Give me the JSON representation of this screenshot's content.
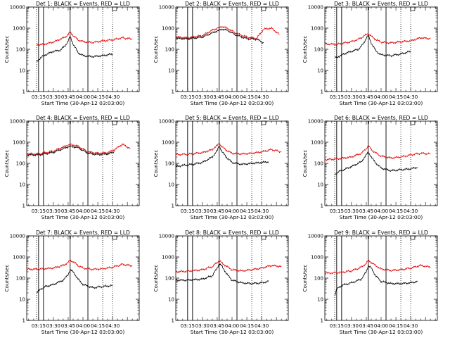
{
  "page": {
    "ylabel": "Counts/sec",
    "xlabel": "Start Time (30-Apr-12 03:03:00)",
    "x_ticks": [
      "03:15",
      "03:30",
      "03:45",
      "04:00",
      "04:15",
      "04:30"
    ],
    "y_ticks": [
      "1",
      "10",
      "100",
      "1000",
      "10000"
    ],
    "colors": {
      "black_series": "#000000",
      "red_series": "#e00000",
      "axes": "#000000"
    }
  },
  "chart_data": [
    {
      "type": "line",
      "title": "Det 1: BLACK = Events, RED = LLD",
      "x_range": [
        "03:03",
        "04:57"
      ],
      "ylim": [
        1,
        10000
      ],
      "y_scale": "log",
      "vlines_solid": [
        "03:15",
        "03:20",
        "03:47",
        "04:05"
      ],
      "vlines_dotted": [
        "03:13",
        "04:20",
        "04:30"
      ],
      "series": [
        {
          "name": "BLACK",
          "x": [
            "03:13",
            "03:17",
            "03:22",
            "03:30",
            "03:37",
            "03:42",
            "03:45",
            "03:47",
            "03:50",
            "03:55",
            "04:00",
            "04:10",
            "04:20",
            "04:30"
          ],
          "y": [
            25,
            40,
            55,
            80,
            90,
            150,
            250,
            400,
            180,
            70,
            50,
            45,
            50,
            60
          ]
        },
        {
          "name": "RED",
          "x": [
            "03:13",
            "03:20",
            "03:30",
            "03:37",
            "03:42",
            "03:45",
            "03:47",
            "03:50",
            "03:55",
            "04:00",
            "04:10",
            "04:20",
            "04:30",
            "04:40",
            "04:50"
          ],
          "y": [
            170,
            170,
            220,
            300,
            380,
            500,
            650,
            450,
            280,
            230,
            210,
            250,
            280,
            350,
            300
          ]
        }
      ]
    },
    {
      "type": "line",
      "title": "Det 2: BLACK = Events, RED = LLD",
      "x_range": [
        "03:03",
        "04:57"
      ],
      "ylim": [
        1,
        10000
      ],
      "y_scale": "log",
      "vlines_solid": [
        "03:15",
        "03:20",
        "03:47",
        "04:05"
      ],
      "vlines_dotted": [
        "04:20",
        "04:30"
      ],
      "series": [
        {
          "name": "BLACK",
          "x": [
            "03:03",
            "03:15",
            "03:30",
            "03:40",
            "03:50",
            "03:55",
            "04:05",
            "04:15",
            "04:25",
            "04:32"
          ],
          "y": [
            330,
            310,
            380,
            600,
            900,
            800,
            450,
            320,
            300,
            200
          ]
        },
        {
          "name": "RED",
          "x": [
            "03:03",
            "03:15",
            "03:30",
            "03:40",
            "03:50",
            "03:55",
            "04:05",
            "04:15",
            "04:25",
            "04:32",
            "04:40",
            "04:48"
          ],
          "y": [
            380,
            350,
            450,
            800,
            1200,
            1000,
            550,
            380,
            330,
            900,
            1000,
            500
          ]
        }
      ]
    },
    {
      "type": "line",
      "title": "Det 3: BLACK = Events, RED = LLD",
      "x_range": [
        "03:03",
        "04:57"
      ],
      "ylim": [
        1,
        10000
      ],
      "y_scale": "log",
      "vlines_solid": [
        "03:15",
        "03:20",
        "03:47",
        "04:05"
      ],
      "vlines_dotted": [
        "03:13",
        "04:20",
        "04:30"
      ],
      "series": [
        {
          "name": "BLACK",
          "x": [
            "03:13",
            "03:17",
            "03:22",
            "03:30",
            "03:37",
            "03:42",
            "03:45",
            "03:47",
            "03:50",
            "03:55",
            "04:00",
            "04:10",
            "04:20",
            "04:30"
          ],
          "y": [
            40,
            45,
            60,
            80,
            100,
            180,
            350,
            450,
            200,
            80,
            55,
            50,
            60,
            80
          ]
        },
        {
          "name": "RED",
          "x": [
            "03:03",
            "03:15",
            "03:30",
            "03:37",
            "03:42",
            "03:45",
            "03:47",
            "03:50",
            "03:55",
            "04:00",
            "04:10",
            "04:20",
            "04:30",
            "04:40",
            "04:50"
          ],
          "y": [
            180,
            170,
            230,
            300,
            400,
            500,
            550,
            420,
            280,
            220,
            200,
            230,
            250,
            350,
            320
          ]
        }
      ]
    },
    {
      "type": "line",
      "title": "Det 4: BLACK = Events, RED = LLD",
      "x_range": [
        "03:03",
        "04:57"
      ],
      "ylim": [
        1,
        10000
      ],
      "y_scale": "log",
      "vlines_solid": [
        "03:15",
        "03:20",
        "03:47",
        "04:05"
      ],
      "vlines_dotted": [
        "04:20",
        "04:30"
      ],
      "series": [
        {
          "name": "BLACK",
          "x": [
            "03:03",
            "03:15",
            "03:30",
            "03:40",
            "03:47",
            "03:55",
            "04:05",
            "04:15",
            "04:25",
            "04:32"
          ],
          "y": [
            250,
            250,
            330,
            500,
            650,
            550,
            300,
            260,
            280,
            350
          ]
        },
        {
          "name": "RED",
          "x": [
            "03:03",
            "03:15",
            "03:30",
            "03:40",
            "03:47",
            "03:55",
            "04:05",
            "04:15",
            "04:25",
            "04:32",
            "04:40",
            "04:48"
          ],
          "y": [
            280,
            280,
            380,
            600,
            800,
            650,
            350,
            300,
            320,
            450,
            800,
            500
          ]
        }
      ]
    },
    {
      "type": "line",
      "title": "Det 5: BLACK = Events, RED = LLD",
      "x_range": [
        "03:03",
        "04:57"
      ],
      "ylim": [
        1,
        10000
      ],
      "y_scale": "log",
      "vlines_solid": [
        "03:15",
        "03:20",
        "03:47",
        "04:05"
      ],
      "vlines_dotted": [
        "04:20",
        "04:30"
      ],
      "series": [
        {
          "name": "BLACK",
          "x": [
            "03:03",
            "03:10",
            "03:20",
            "03:30",
            "03:40",
            "03:45",
            "03:47",
            "03:50",
            "03:55",
            "04:00",
            "04:10",
            "04:20",
            "04:30",
            "04:37"
          ],
          "y": [
            70,
            80,
            90,
            110,
            200,
            400,
            700,
            350,
            180,
            110,
            90,
            100,
            110,
            120
          ]
        },
        {
          "name": "RED",
          "x": [
            "03:03",
            "03:15",
            "03:30",
            "03:40",
            "03:45",
            "03:47",
            "03:50",
            "03:55",
            "04:00",
            "04:10",
            "04:20",
            "04:30",
            "04:40",
            "04:50"
          ],
          "y": [
            260,
            270,
            320,
            450,
            700,
            900,
            600,
            400,
            300,
            280,
            300,
            350,
            450,
            350
          ]
        }
      ]
    },
    {
      "type": "line",
      "title": "Det 6: BLACK = Events, RED = LLD",
      "x_range": [
        "03:03",
        "04:57"
      ],
      "ylim": [
        1,
        10000
      ],
      "y_scale": "log",
      "vlines_solid": [
        "03:15",
        "03:20",
        "03:47",
        "04:05"
      ],
      "vlines_dotted": [
        "03:13",
        "04:20",
        "04:30"
      ],
      "series": [
        {
          "name": "BLACK",
          "x": [
            "03:13",
            "03:17",
            "03:22",
            "03:30",
            "03:40",
            "03:45",
            "03:47",
            "03:50",
            "03:55",
            "04:00",
            "04:10",
            "04:20",
            "04:30",
            "04:37"
          ],
          "y": [
            30,
            40,
            50,
            70,
            120,
            250,
            350,
            200,
            100,
            60,
            45,
            50,
            55,
            65
          ]
        },
        {
          "name": "RED",
          "x": [
            "03:03",
            "03:15",
            "03:30",
            "03:40",
            "03:45",
            "03:47",
            "03:50",
            "03:55",
            "04:00",
            "04:10",
            "04:20",
            "04:30",
            "04:40",
            "04:50"
          ],
          "y": [
            150,
            160,
            200,
            300,
            500,
            700,
            450,
            300,
            220,
            180,
            200,
            250,
            300,
            280
          ]
        }
      ]
    },
    {
      "type": "line",
      "title": "Det 7: BLACK = Events, RED = LLD",
      "x_range": [
        "03:03",
        "04:57"
      ],
      "ylim": [
        1,
        10000
      ],
      "y_scale": "log",
      "vlines_solid": [
        "03:15",
        "03:20",
        "03:47",
        "04:05"
      ],
      "vlines_dotted": [
        "03:13",
        "04:20",
        "04:30"
      ],
      "series": [
        {
          "name": "BLACK",
          "x": [
            "03:13",
            "03:17",
            "03:22",
            "03:30",
            "03:40",
            "03:45",
            "03:47",
            "03:50",
            "03:55",
            "04:00",
            "04:10",
            "04:20",
            "04:30"
          ],
          "y": [
            20,
            30,
            40,
            50,
            80,
            150,
            250,
            200,
            90,
            50,
            35,
            40,
            45
          ]
        },
        {
          "name": "RED",
          "x": [
            "03:03",
            "03:15",
            "03:30",
            "03:40",
            "03:45",
            "03:47",
            "03:50",
            "03:55",
            "04:00",
            "04:10",
            "04:20",
            "04:30",
            "04:40",
            "04:50"
          ],
          "y": [
            260,
            270,
            300,
            400,
            550,
            700,
            600,
            400,
            300,
            260,
            280,
            330,
            450,
            380
          ]
        }
      ]
    },
    {
      "type": "line",
      "title": "Det 8: BLACK = Events, RED = LLD",
      "x_range": [
        "03:03",
        "04:57"
      ],
      "ylim": [
        1,
        10000
      ],
      "y_scale": "log",
      "vlines_solid": [
        "03:15",
        "03:20",
        "03:47",
        "04:05"
      ],
      "vlines_dotted": [
        "04:20",
        "04:30"
      ],
      "series": [
        {
          "name": "BLACK",
          "x": [
            "03:03",
            "03:15",
            "03:30",
            "03:40",
            "03:45",
            "03:47",
            "03:50",
            "03:55",
            "04:00",
            "04:10",
            "04:20",
            "04:30",
            "04:37"
          ],
          "y": [
            80,
            80,
            90,
            130,
            300,
            500,
            350,
            150,
            80,
            60,
            55,
            60,
            70
          ]
        },
        {
          "name": "RED",
          "x": [
            "03:03",
            "03:15",
            "03:30",
            "03:40",
            "03:45",
            "03:47",
            "03:50",
            "03:55",
            "04:00",
            "04:10",
            "04:20",
            "04:30",
            "04:40",
            "04:50"
          ],
          "y": [
            200,
            210,
            250,
            350,
            550,
            700,
            500,
            350,
            250,
            220,
            250,
            300,
            400,
            350
          ]
        }
      ]
    },
    {
      "type": "line",
      "title": "Det 9: BLACK = Events, RED = LLD",
      "x_range": [
        "03:03",
        "04:57"
      ],
      "ylim": [
        1,
        10000
      ],
      "y_scale": "log",
      "vlines_solid": [
        "03:15",
        "03:20",
        "03:47",
        "04:05"
      ],
      "vlines_dotted": [
        "03:13",
        "04:20",
        "04:30"
      ],
      "series": [
        {
          "name": "BLACK",
          "x": [
            "03:13",
            "03:15",
            "03:20",
            "03:30",
            "03:40",
            "03:45",
            "03:47",
            "03:50",
            "03:55",
            "04:00",
            "04:10",
            "04:20",
            "04:30",
            "04:37"
          ],
          "y": [
            15,
            30,
            45,
            60,
            90,
            200,
            400,
            300,
            120,
            70,
            55,
            55,
            60,
            70
          ]
        },
        {
          "name": "RED",
          "x": [
            "03:03",
            "03:15",
            "03:30",
            "03:40",
            "03:45",
            "03:47",
            "03:50",
            "03:55",
            "04:00",
            "04:10",
            "04:20",
            "04:30",
            "04:40",
            "04:50"
          ],
          "y": [
            170,
            180,
            220,
            330,
            500,
            700,
            550,
            380,
            270,
            230,
            250,
            300,
            400,
            330
          ]
        }
      ]
    }
  ]
}
